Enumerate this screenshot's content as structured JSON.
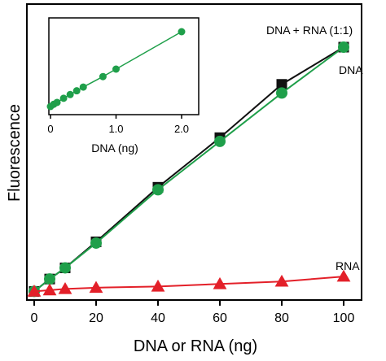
{
  "chart_data": [
    {
      "type": "line",
      "xlabel": "DNA or RNA (ng)",
      "ylabel": "Fluorescence",
      "xlim": [
        0,
        100
      ],
      "ylim": [
        0,
        100
      ],
      "xticks": [
        0,
        20,
        40,
        60,
        80,
        100
      ],
      "tick_labels": [
        "0",
        "20",
        "40",
        "60",
        "80",
        "100"
      ],
      "y_tick_labels_shown": false,
      "grid": false,
      "series": [
        {
          "name": "DNA + RNA (1:1)",
          "color": "#111111",
          "marker": "square",
          "x": [
            0,
            5,
            10,
            20,
            40,
            60,
            80,
            100
          ],
          "y": [
            1.5,
            6.5,
            11,
            21.5,
            43.5,
            63.5,
            85,
            100
          ]
        },
        {
          "name": "DNA",
          "color": "#1f9f4a",
          "marker": "circle",
          "x": [
            0,
            5,
            10,
            20,
            40,
            60,
            80,
            100
          ],
          "y": [
            1.5,
            6.5,
            11,
            21,
            42.5,
            62,
            81.5,
            100
          ]
        },
        {
          "name": "RNA",
          "color": "#e32029",
          "marker": "triangle",
          "x": [
            0,
            5,
            10,
            20,
            40,
            60,
            80,
            100
          ],
          "y": [
            1.5,
            2,
            2.5,
            3,
            3.5,
            4.5,
            5.5,
            7.5
          ]
        }
      ]
    },
    {
      "type": "line",
      "xlabel": "DNA (ng)",
      "xlim": [
        0,
        2
      ],
      "ylim": [
        0,
        100
      ],
      "xticks": [
        0,
        1,
        2
      ],
      "tick_labels": [
        "0",
        "1.0",
        "2.0"
      ],
      "series": [
        {
          "color": "#1f9f4a",
          "marker": "circle",
          "x": [
            0,
            0.05,
            0.1,
            0.2,
            0.3,
            0.4,
            0.5,
            0.8,
            1.0,
            2.0
          ],
          "y": [
            0,
            3,
            5.5,
            11,
            16,
            21,
            26,
            40,
            50,
            100
          ]
        }
      ]
    }
  ]
}
